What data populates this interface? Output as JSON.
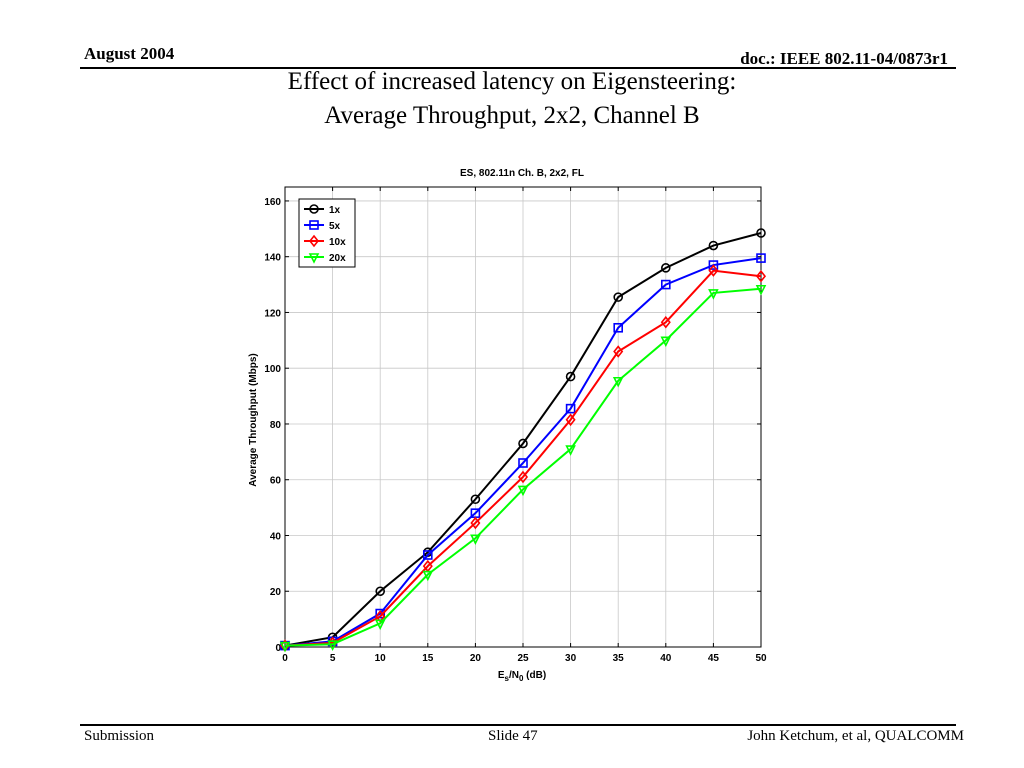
{
  "header": {
    "date": "August 2004",
    "doc": "doc.: IEEE 802.11-04/0873r1"
  },
  "slide_title": {
    "line1": "Effect of increased latency on Eigensteering:",
    "line2": "Average Throughput, 2x2, Channel B"
  },
  "footer": {
    "left": "Submission",
    "center": "Slide 47",
    "right": "John Ketchum, et al, QUALCOMM"
  },
  "chart_data": {
    "type": "line",
    "title": "ES, 802.11n Ch. B, 2x2, FL",
    "xlabel": {
      "main": "E",
      "sub1": "s",
      "mid": "/N",
      "sub2": "0",
      "tail": " (dB)"
    },
    "ylabel": "Average Throughput (Mbps)",
    "x": [
      0,
      5,
      10,
      15,
      20,
      25,
      30,
      35,
      40,
      45,
      50
    ],
    "xlim": [
      0,
      50
    ],
    "ylim": [
      0,
      165
    ],
    "xticks": [
      0,
      5,
      10,
      15,
      20,
      25,
      30,
      35,
      40,
      45,
      50
    ],
    "yticks": [
      0,
      20,
      40,
      60,
      80,
      100,
      120,
      140,
      160
    ],
    "grid": true,
    "legend_position": "top-left",
    "series": [
      {
        "name": "1x",
        "color": "#000000",
        "marker": "circle",
        "values": [
          0.5,
          3.5,
          20,
          34,
          53,
          73,
          97,
          125.5,
          136,
          144,
          148.5
        ]
      },
      {
        "name": "5x",
        "color": "#0000ff",
        "marker": "square",
        "values": [
          0.5,
          2,
          12,
          33,
          48,
          66,
          85.5,
          114.5,
          130,
          137,
          139.5
        ]
      },
      {
        "name": "10x",
        "color": "#ff0000",
        "marker": "diamond",
        "values": [
          0.5,
          1.5,
          11,
          29,
          44.5,
          61,
          81.5,
          106,
          116.5,
          135,
          133
        ]
      },
      {
        "name": "20x",
        "color": "#00ff00",
        "marker": "triangle-down",
        "values": [
          0.5,
          1,
          8.5,
          26,
          39,
          56.5,
          71,
          95.5,
          110,
          127,
          128.5
        ]
      }
    ]
  }
}
